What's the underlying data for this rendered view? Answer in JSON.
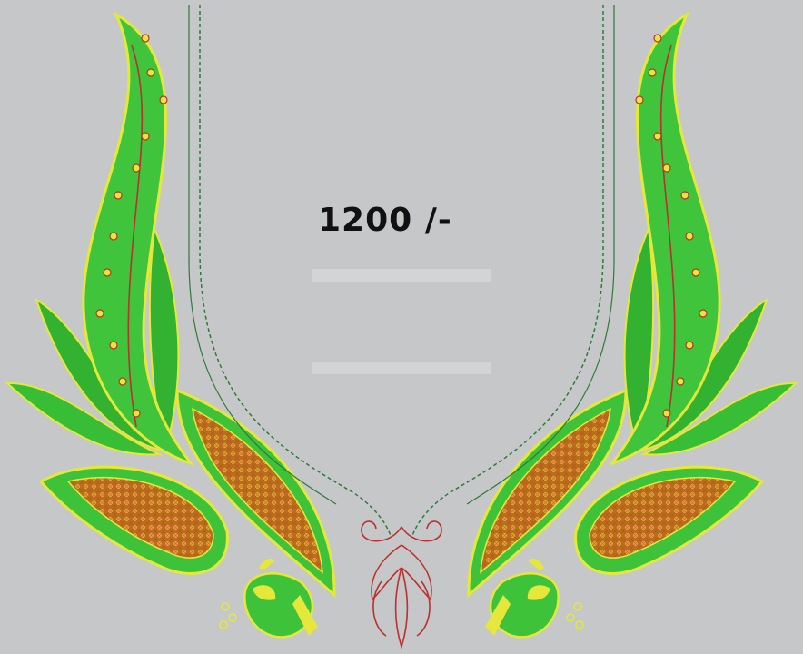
{
  "price_label": "1200 /-",
  "colors": {
    "background": "#c6c7c9",
    "leaf_green": "#3dc23a",
    "leaf_dark": "#1f8f2a",
    "outline_yellow": "#e5e83a",
    "paisley_fill": "#c77a1f",
    "thread_red": "#b8322e",
    "neckline_stitch": "#2f7a3a"
  },
  "icons": [
    "paisley-motif",
    "peacock-motif",
    "leaf-spray-motif",
    "neckline-outline",
    "center-floral-motif"
  ]
}
